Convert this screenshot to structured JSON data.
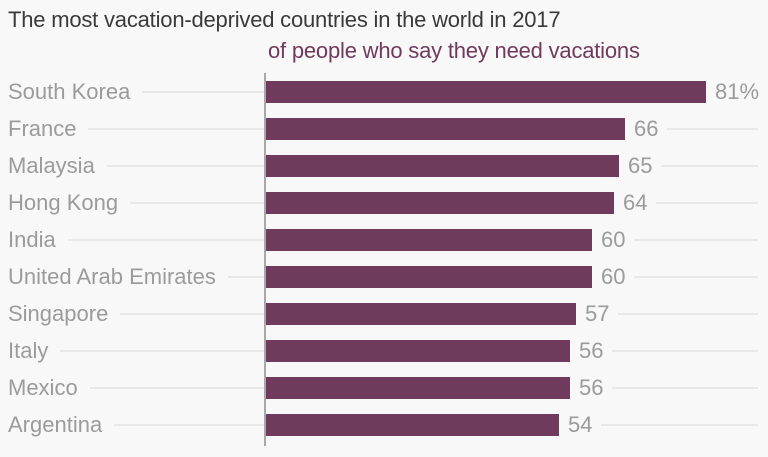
{
  "chart_data": {
    "type": "bar",
    "orientation": "horizontal",
    "title": "The most vacation-deprived countries in the world in 2017",
    "subtitle": "of people who say they need vacations",
    "categories": [
      "South Korea",
      "France",
      "Malaysia",
      "Hong Kong",
      "India",
      "United Arab Emirates",
      "Singapore",
      "Italy",
      "Mexico",
      "Argentina"
    ],
    "values": [
      81,
      66,
      65,
      64,
      60,
      60,
      57,
      56,
      56,
      54
    ],
    "value_labels": [
      "81%",
      "66",
      "65",
      "64",
      "60",
      "60",
      "57",
      "56",
      "56",
      "54"
    ],
    "max_value": 81,
    "unit": "percent of people",
    "xlim": [
      0,
      92
    ],
    "grid": "horizontal row leader lines",
    "legend": "none",
    "colors": {
      "bar": "#6f3a5c",
      "subtitle": "#6f3a5c",
      "title": "#3a3a3a",
      "labels": "#9b9b9b",
      "axis": "#a8a8a8",
      "gridline": "#e8e8e8",
      "background": "#f8f8f8"
    }
  }
}
